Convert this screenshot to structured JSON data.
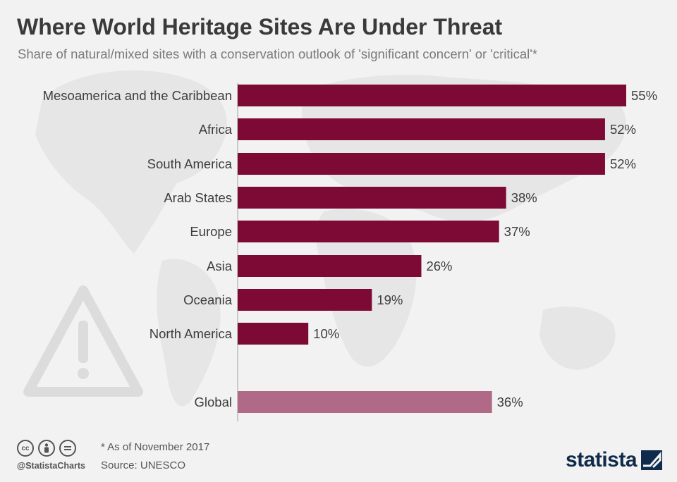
{
  "header": {
    "title": "Where World Heritage Sites Are Under Threat",
    "subtitle": "Share of natural/mixed sites with a conservation outlook of 'significant concern' or 'critical'*"
  },
  "chart_data": {
    "type": "bar",
    "orientation": "horizontal",
    "categories": [
      "Mesoamerica and the Caribbean",
      "Africa",
      "South America",
      "Arab States",
      "Europe",
      "Asia",
      "Oceania",
      "North America",
      "Global"
    ],
    "values": [
      55,
      52,
      52,
      38,
      37,
      26,
      19,
      10,
      36
    ],
    "value_labels": [
      "55%",
      "52%",
      "52%",
      "38%",
      "37%",
      "26%",
      "19%",
      "10%",
      "36%"
    ],
    "unit": "%",
    "xlim": [
      0,
      55
    ],
    "grid": false,
    "colors": {
      "regions": "#7d0a35",
      "global": "#b06a88"
    }
  },
  "footer": {
    "footnote": "* As of November 2017",
    "source": "Source: UNESCO",
    "handle": "@StatistaCharts",
    "brand": "statista",
    "license_icons": [
      "cc-icon",
      "attribution-icon",
      "no-derivatives-icon"
    ]
  }
}
